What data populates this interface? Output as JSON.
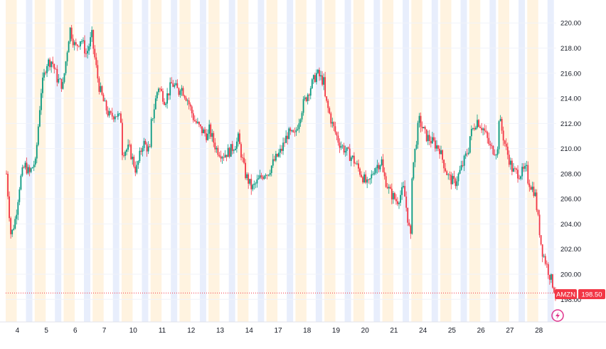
{
  "chart_data": {
    "type": "candlestick",
    "symbol": "AMZN",
    "last_price": 198.5,
    "last_price_label": "198.50",
    "ylim": [
      196.2,
      221.6
    ],
    "y_ticks": [
      198,
      200,
      202,
      204,
      206,
      208,
      210,
      212,
      214,
      216,
      218,
      220
    ],
    "y_tick_labels": [
      "198.00",
      "200.00",
      "202.00",
      "204.00",
      "206.00",
      "208.00",
      "210.00",
      "212.00",
      "214.00",
      "216.00",
      "218.00",
      "220.00"
    ],
    "x_labels": [
      "4",
      "5",
      "6",
      "7",
      "10",
      "11",
      "12",
      "13",
      "14",
      "17",
      "18",
      "19",
      "20",
      "21",
      "24",
      "25",
      "26",
      "27",
      "28"
    ],
    "bars_per_day": 20,
    "grid": true,
    "session_shading": true,
    "ohlc_close_path": [
      {
        "day": "4",
        "points": [
          208.0,
          203.0,
          204.5,
          207.5,
          208.7,
          208.0,
          208.8
        ]
      },
      {
        "day": "5",
        "points": [
          208.8,
          214.5,
          216.8,
          217.0,
          215.5,
          215.0
        ]
      },
      {
        "day": "6",
        "points": [
          216.0,
          219.6,
          218.0,
          218.8,
          217.5,
          219.0
        ]
      },
      {
        "day": "7",
        "points": [
          218.0,
          215.0,
          213.5,
          212.5,
          212.8,
          212.3
        ]
      },
      {
        "day": "10",
        "points": [
          209.8,
          210.0,
          208.2,
          210.5,
          209.8
        ]
      },
      {
        "day": "11",
        "points": [
          212.0,
          215.0,
          213.8,
          215.2,
          214.5
        ]
      },
      {
        "day": "12",
        "points": [
          215.0,
          214.0,
          212.3,
          211.5,
          211.0
        ]
      },
      {
        "day": "13",
        "points": [
          211.5,
          210.0,
          209.5,
          209.8,
          210.5
        ]
      },
      {
        "day": "14",
        "points": [
          210.8,
          208.0,
          206.8,
          207.5,
          208.2
        ]
      },
      {
        "day": "17",
        "points": [
          208.0,
          209.0,
          209.8,
          211.2,
          211.0
        ]
      },
      {
        "day": "18",
        "points": [
          211.5,
          213.5,
          214.8,
          216.0,
          215.3
        ]
      },
      {
        "day": "19",
        "points": [
          214.0,
          212.0,
          210.5,
          209.8,
          209.2
        ]
      },
      {
        "day": "20",
        "points": [
          209.0,
          208.0,
          207.0,
          208.5,
          209.0
        ]
      },
      {
        "day": "21",
        "points": [
          208.0,
          206.5,
          205.8,
          206.8,
          202.8
        ]
      },
      {
        "day": "24",
        "points": [
          208.0,
          212.3,
          211.0,
          210.5,
          210.0
        ]
      },
      {
        "day": "25",
        "points": [
          209.5,
          207.8,
          207.2,
          208.5,
          210.0
        ]
      },
      {
        "day": "26",
        "points": [
          211.0,
          212.3,
          211.5,
          210.0,
          209.8
        ]
      },
      {
        "day": "27",
        "points": [
          212.5,
          210.0,
          208.2,
          208.0,
          208.3
        ]
      },
      {
        "day": "28",
        "points": [
          207.5,
          206.5,
          202.0,
          200.2,
          198.5
        ]
      }
    ]
  },
  "colors": {
    "up": "#089981",
    "down": "#f23645",
    "grid": "#f0f3fa",
    "text": "#131722",
    "shade_premarket": "#fff3e0",
    "shade_afterhours": "#e8eefc",
    "price_line": "#f23645"
  },
  "icons": {
    "bottom_right": "lightning-icon"
  }
}
